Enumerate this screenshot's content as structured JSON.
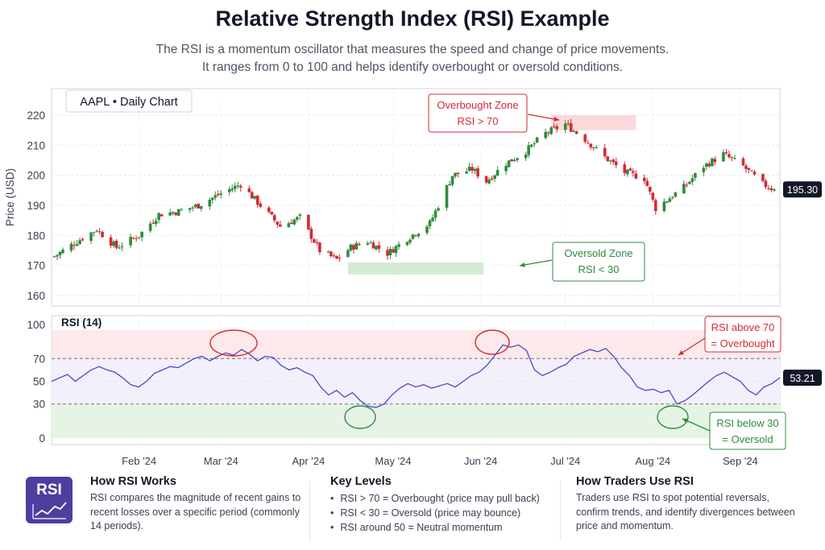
{
  "title": "Relative Strength Index (RSI) Example",
  "subtitle_line1": "The RSI is a momentum oscillator that measures the speed and change of price movements.",
  "subtitle_line2": "It ranges from 0 to 100 and helps identify overbought or oversold conditions.",
  "chart_data": [
    {
      "type": "candlestick",
      "title": "AAPL  •  Daily Chart",
      "ylabel": "Price (USD)",
      "ylim": [
        155,
        224
      ],
      "yticks": [
        160,
        170,
        180,
        190,
        200,
        210,
        220
      ],
      "grid": true,
      "last_price": "195.30",
      "colors": {
        "up": "#2e8b3c",
        "down": "#d42a35"
      },
      "anchors": {
        "x": [
          "2024-01-02",
          "2024-01-10",
          "2024-01-17",
          "2024-01-24",
          "2024-02-01",
          "2024-02-08",
          "2024-02-15",
          "2024-02-22",
          "2024-03-01",
          "2024-03-08",
          "2024-03-15",
          "2024-03-22",
          "2024-03-29",
          "2024-04-05",
          "2024-04-11",
          "2024-04-16",
          "2024-04-22",
          "2024-04-29",
          "2024-05-06",
          "2024-05-14",
          "2024-05-22",
          "2024-05-29",
          "2024-06-03",
          "2024-06-10",
          "2024-06-17",
          "2024-06-24",
          "2024-07-01",
          "2024-07-08",
          "2024-07-15",
          "2024-07-22",
          "2024-07-29",
          "2024-08-02",
          "2024-08-12",
          "2024-08-19",
          "2024-08-26",
          "2024-09-02",
          "2024-09-09",
          "2024-09-13"
        ],
        "close": [
          173,
          178,
          182,
          176,
          180,
          187,
          188,
          190,
          194,
          197,
          190,
          183,
          186,
          175,
          172,
          176,
          178,
          174,
          179,
          184,
          200,
          202,
          198,
          204,
          208,
          214,
          217,
          212,
          206,
          201,
          199,
          189,
          196,
          203,
          207,
          203,
          197,
          195.3
        ]
      },
      "annotations": [
        {
          "text": [
            "Overbought Zone",
            "RSI > 70"
          ],
          "color": "#d42a35",
          "zone_dates": [
            "2024-06-26",
            "2024-07-26"
          ],
          "zone_prices": [
            215,
            220
          ]
        },
        {
          "text": [
            "Oversold Zone",
            "RSI < 30"
          ],
          "color": "#2e8b3c",
          "zone_dates": [
            "2024-04-15",
            "2024-06-02"
          ],
          "zone_prices": [
            167,
            171
          ]
        }
      ]
    },
    {
      "type": "line",
      "title": "RSI (14)",
      "ylim": [
        0,
        100
      ],
      "yticks": [
        0,
        30,
        50,
        70,
        100
      ],
      "levels": {
        "overbought": 70,
        "oversold": 30
      },
      "last_value": "53.21",
      "colors": {
        "line": "#4f46c8",
        "over": "#fde8ea",
        "mid": "#f3f0fb",
        "under": "#e6f4e6"
      },
      "series": [
        {
          "values": [
            50,
            53,
            56,
            50,
            55,
            60,
            63,
            60,
            58,
            53,
            47,
            45,
            50,
            57,
            60,
            63,
            62,
            66,
            70,
            72,
            68,
            72,
            75,
            73,
            78,
            74,
            68,
            72,
            71,
            64,
            60,
            62,
            58,
            55,
            45,
            38,
            42,
            36,
            40,
            33,
            28,
            27,
            30,
            38,
            44,
            48,
            45,
            47,
            44,
            46,
            48,
            45,
            50,
            55,
            58,
            64,
            73,
            82,
            80,
            82,
            77,
            60,
            55,
            58,
            62,
            65,
            72,
            75,
            78,
            76,
            79,
            72,
            62,
            55,
            45,
            42,
            43,
            40,
            42,
            30,
            33,
            38,
            44,
            50,
            55,
            58,
            54,
            50,
            42,
            38,
            45,
            48,
            53.21
          ]
        }
      ],
      "annotations": [
        {
          "text": [
            "RSI above 70",
            "= Overbought"
          ],
          "color": "#d42a35"
        },
        {
          "text": [
            "RSI below 30",
            "= Oversold"
          ],
          "color": "#2e8b3c"
        }
      ]
    }
  ],
  "x_tick_labels": [
    "Feb '24",
    "Mar '24",
    "Apr '24",
    "May '24",
    "Jun '24",
    "Jul '24",
    "Aug '24",
    "Sep '24"
  ],
  "x_tick_dates": [
    "2024-02-01",
    "2024-03-01",
    "2024-04-01",
    "2024-05-01",
    "2024-06-01",
    "2024-07-01",
    "2024-08-01",
    "2024-09-01"
  ],
  "x_range": [
    "2024-01-01",
    "2024-09-15"
  ],
  "info": {
    "logo_text": "RSI",
    "how": {
      "title": "How RSI Works",
      "text": "RSI compares the magnitude of recent gains to recent losses over a specific period (commonly 14 periods)."
    },
    "levels": {
      "title": "Key Levels",
      "items": [
        "RSI > 70  =  Overbought (price may pull back)",
        "RSI < 30  =  Oversold (price may bounce)",
        "RSI around 50  =  Neutral momentum"
      ]
    },
    "traders": {
      "title": "How Traders Use RSI",
      "text": "Traders use RSI to spot potential reversals, confirm trends, and identify divergences between price and momentum."
    }
  }
}
